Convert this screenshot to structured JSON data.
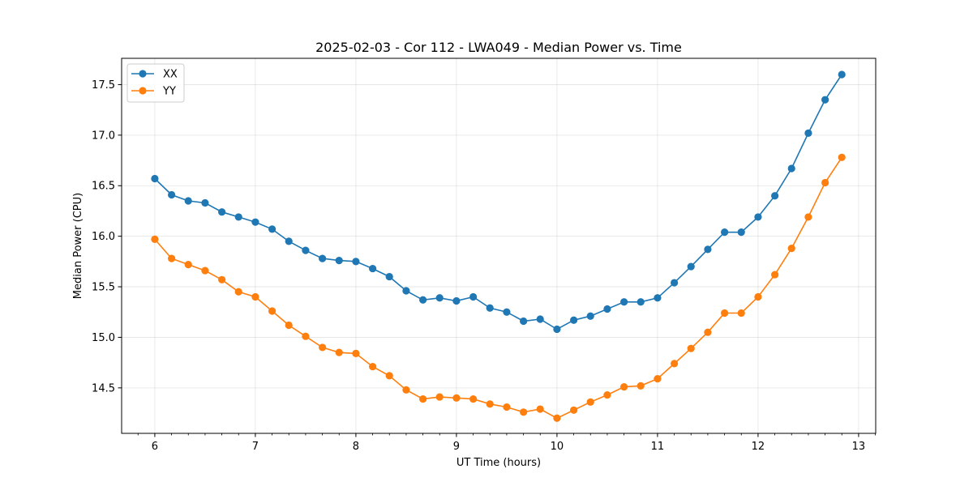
{
  "chart_data": {
    "type": "line",
    "title": "2025-02-03 - Cor 112 - LWA049 - Median Power vs. Time",
    "xlabel": "UT Time (hours)",
    "ylabel": "Median Power (CPU)",
    "xlim": [
      5.67,
      13.17
    ],
    "ylim": [
      14.05,
      17.76
    ],
    "xticks": [
      6,
      7,
      8,
      9,
      10,
      11,
      12,
      13
    ],
    "xtick_labels": [
      "6",
      "7",
      "8",
      "9",
      "10",
      "11",
      "12",
      "13"
    ],
    "yticks": [
      14.5,
      15.0,
      15.5,
      16.0,
      16.5,
      17.0,
      17.5
    ],
    "ytick_labels": [
      "14.5",
      "15.0",
      "15.5",
      "16.0",
      "16.5",
      "17.0",
      "17.5"
    ],
    "grid": true,
    "legend_position": "top-left",
    "x": [
      6.0,
      6.167,
      6.333,
      6.5,
      6.667,
      6.833,
      7.0,
      7.167,
      7.333,
      7.5,
      7.667,
      7.833,
      8.0,
      8.167,
      8.333,
      8.5,
      8.667,
      8.833,
      9.0,
      9.167,
      9.333,
      9.5,
      9.667,
      9.833,
      10.0,
      10.167,
      10.333,
      10.5,
      10.667,
      10.833,
      11.0,
      11.167,
      11.333,
      11.5,
      11.667,
      11.833,
      12.0,
      12.167,
      12.333,
      12.5,
      12.667,
      12.833
    ],
    "series": [
      {
        "name": "XX",
        "color": "#1f77b4",
        "values": [
          16.57,
          16.41,
          16.35,
          16.33,
          16.24,
          16.19,
          16.14,
          16.07,
          15.95,
          15.86,
          15.78,
          15.76,
          15.75,
          15.68,
          15.6,
          15.46,
          15.37,
          15.39,
          15.36,
          15.4,
          15.29,
          15.25,
          15.16,
          15.18,
          15.08,
          15.17,
          15.21,
          15.28,
          15.35,
          15.35,
          15.39,
          15.54,
          15.7,
          15.87,
          16.04,
          16.04,
          16.19,
          16.4,
          16.67,
          17.02,
          17.35,
          17.6
        ]
      },
      {
        "name": "YY",
        "color": "#ff7f0e",
        "values": [
          15.97,
          15.78,
          15.72,
          15.66,
          15.57,
          15.45,
          15.4,
          15.26,
          15.12,
          15.01,
          14.9,
          14.85,
          14.84,
          14.71,
          14.62,
          14.48,
          14.39,
          14.41,
          14.4,
          14.39,
          14.34,
          14.31,
          14.26,
          14.29,
          14.2,
          14.28,
          14.36,
          14.43,
          14.51,
          14.52,
          14.59,
          14.74,
          14.89,
          15.05,
          15.24,
          15.24,
          15.4,
          15.62,
          15.88,
          16.19,
          16.53,
          16.78
        ]
      }
    ]
  }
}
